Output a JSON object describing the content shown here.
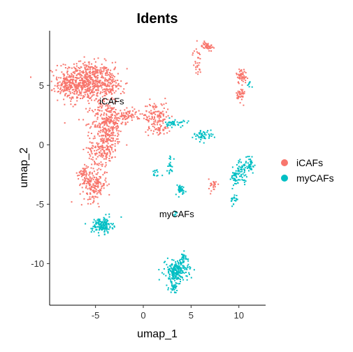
{
  "chart_data": {
    "type": "scatter",
    "title": "Idents",
    "xlabel": "umap_1",
    "ylabel": "umap_2",
    "xlim": [
      -9.8,
      12.8
    ],
    "ylim": [
      -13.5,
      9.6
    ],
    "xticks": [
      -5,
      0,
      5,
      10
    ],
    "yticks": [
      5,
      0,
      -5,
      -10
    ],
    "xtick_labels": [
      "-5",
      "0",
      "5",
      "10"
    ],
    "ytick_labels": [
      "5",
      "0",
      "-5",
      "-10"
    ],
    "grid": false,
    "legend_position": "right",
    "series": [
      {
        "name": "iCAFs",
        "color": "#F8766D",
        "clusters": [
          {
            "cx": -6.0,
            "cy": 5.3,
            "rx": 2.6,
            "ry": 1.5,
            "n": 650
          },
          {
            "cx": -8.1,
            "cy": 4.9,
            "rx": 0.7,
            "ry": 0.9,
            "n": 60
          },
          {
            "cx": -3.5,
            "cy": 4.9,
            "rx": 1.1,
            "ry": 1.2,
            "n": 90
          },
          {
            "cx": -3.7,
            "cy": 1.9,
            "rx": 1.5,
            "ry": 1.6,
            "n": 280
          },
          {
            "cx": -4.2,
            "cy": -0.3,
            "rx": 1.4,
            "ry": 1.2,
            "n": 180
          },
          {
            "cx": -5.2,
            "cy": -3.3,
            "rx": 1.3,
            "ry": 1.3,
            "n": 200
          },
          {
            "cx": -6.3,
            "cy": -2.4,
            "rx": 0.5,
            "ry": 0.5,
            "n": 35
          },
          {
            "cx": -1.5,
            "cy": 2.5,
            "rx": 1.1,
            "ry": 0.5,
            "n": 70
          },
          {
            "cx": 1.3,
            "cy": 2.4,
            "rx": 1.2,
            "ry": 1.1,
            "n": 120
          },
          {
            "cx": 1.8,
            "cy": 1.3,
            "rx": 0.8,
            "ry": 0.4,
            "n": 30
          },
          {
            "cx": 6.7,
            "cy": 8.3,
            "rx": 0.5,
            "ry": 0.3,
            "n": 50
          },
          {
            "cx": 5.6,
            "cy": 7.0,
            "rx": 0.4,
            "ry": 1.1,
            "n": 30
          },
          {
            "cx": 10.3,
            "cy": 5.8,
            "rx": 0.5,
            "ry": 0.6,
            "n": 55
          },
          {
            "cx": 10.2,
            "cy": 4.2,
            "rx": 0.4,
            "ry": 0.6,
            "n": 40
          },
          {
            "cx": 7.3,
            "cy": -3.4,
            "rx": 0.4,
            "ry": 0.5,
            "n": 28
          }
        ]
      },
      {
        "name": "myCAFs",
        "color": "#00BFC4",
        "clusters": [
          {
            "cx": 3.3,
            "cy": 1.8,
            "rx": 0.9,
            "ry": 0.3,
            "n": 40
          },
          {
            "cx": 6.3,
            "cy": 0.8,
            "rx": 0.9,
            "ry": 0.4,
            "n": 50
          },
          {
            "cx": 2.8,
            "cy": -1.7,
            "rx": 0.3,
            "ry": 0.8,
            "n": 22
          },
          {
            "cx": 1.5,
            "cy": -2.3,
            "rx": 0.5,
            "ry": 0.3,
            "n": 12
          },
          {
            "cx": 3.9,
            "cy": -3.8,
            "rx": 0.5,
            "ry": 0.4,
            "n": 40
          },
          {
            "cx": 3.3,
            "cy": -5.8,
            "rx": 0.15,
            "ry": 0.25,
            "n": 6
          },
          {
            "cx": 9.5,
            "cy": -2.8,
            "rx": 0.6,
            "ry": 0.7,
            "n": 35
          },
          {
            "cx": 10.3,
            "cy": -2.2,
            "rx": 0.5,
            "ry": 0.8,
            "n": 55
          },
          {
            "cx": 11.2,
            "cy": -1.6,
            "rx": 0.5,
            "ry": 0.7,
            "n": 40
          },
          {
            "cx": 9.5,
            "cy": -4.6,
            "rx": 0.3,
            "ry": 0.5,
            "n": 18
          },
          {
            "cx": 11.1,
            "cy": 5.0,
            "rx": 0.2,
            "ry": 0.3,
            "n": 8
          },
          {
            "cx": -4.3,
            "cy": -6.8,
            "rx": 1.0,
            "ry": 0.6,
            "n": 150
          },
          {
            "cx": 3.5,
            "cy": -10.6,
            "rx": 1.1,
            "ry": 0.8,
            "n": 220
          },
          {
            "cx": 3.2,
            "cy": -12.0,
            "rx": 0.5,
            "ry": 0.4,
            "n": 40
          },
          {
            "cx": 4.2,
            "cy": -9.5,
            "rx": 0.4,
            "ry": 0.4,
            "n": 25
          }
        ]
      }
    ],
    "annotations": [
      {
        "text": "iCAFs",
        "x": -3.3,
        "y": 3.4
      },
      {
        "text": "myCAFs",
        "x": 3.5,
        "y": -6.1
      }
    ],
    "legend": [
      {
        "label": "iCAFs",
        "color": "#F8766D"
      },
      {
        "label": "myCAFs",
        "color": "#00BFC4"
      }
    ]
  }
}
